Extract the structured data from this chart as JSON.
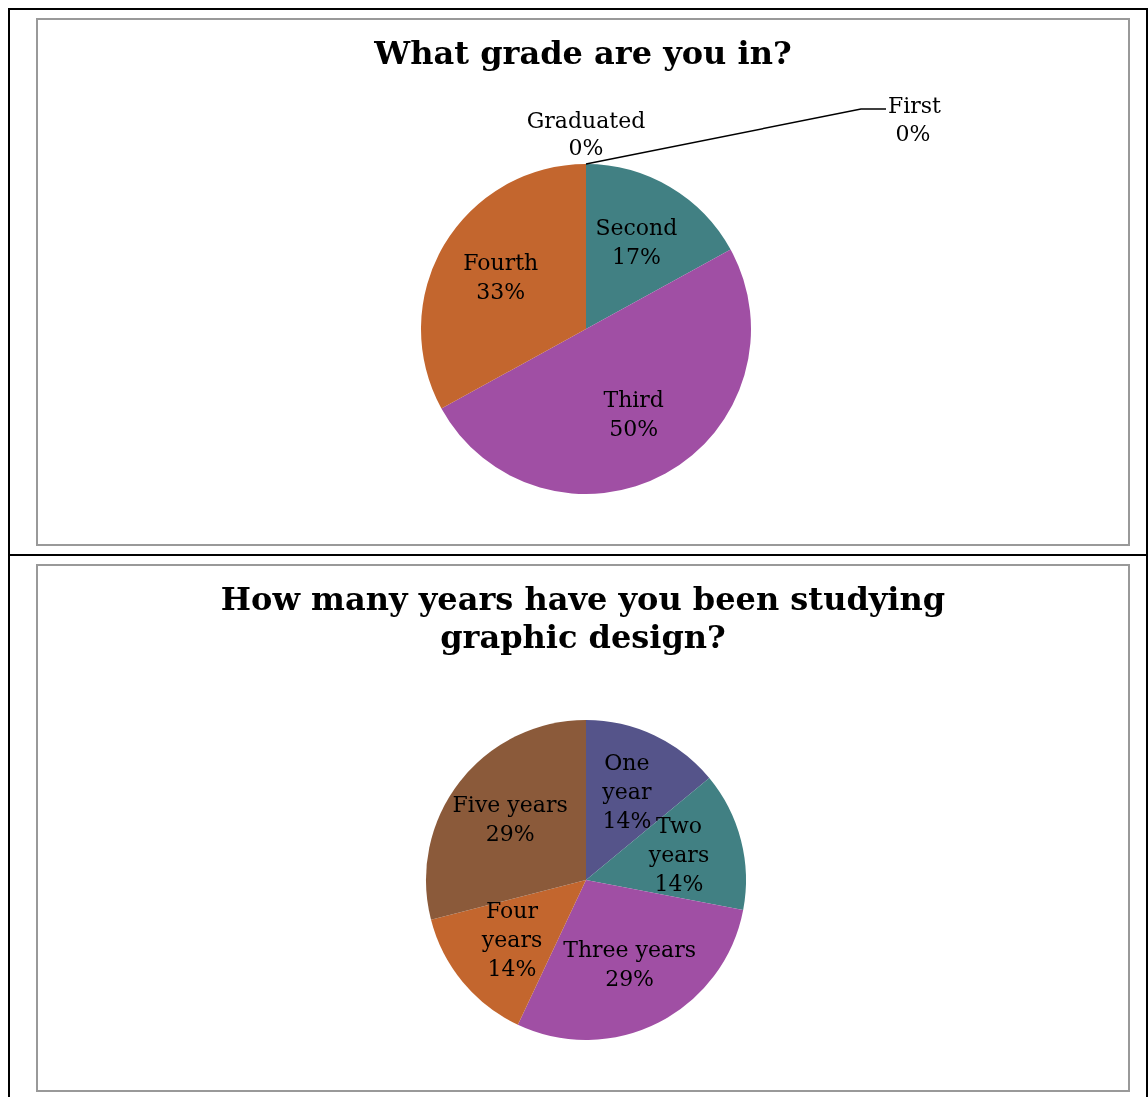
{
  "chart_data": [
    {
      "type": "pie",
      "title": "What grade are you in?",
      "categories": [
        "First",
        "Second",
        "Third",
        "Fourth",
        "Graduated"
      ],
      "values": [
        0,
        17,
        50,
        33,
        0
      ],
      "value_labels": [
        "0%",
        "17%",
        "50%",
        "33%",
        "0%"
      ],
      "colors": [
        "#4f81bd",
        "#418083",
        "#a04fa4",
        "#c3662e",
        "#8b5a3a"
      ],
      "legend": false
    },
    {
      "type": "pie",
      "title": "How many years have you been studying graphic design?",
      "categories": [
        "One year",
        "Two years",
        "Three years",
        "Four years",
        "Five years"
      ],
      "values": [
        14,
        14,
        29,
        14,
        29
      ],
      "value_labels": [
        "14%",
        "14%",
        "29%",
        "14%",
        "29%"
      ],
      "colors": [
        "#55548a",
        "#418083",
        "#a04fa4",
        "#c3662e",
        "#8b5a3a"
      ],
      "legend": false
    }
  ]
}
